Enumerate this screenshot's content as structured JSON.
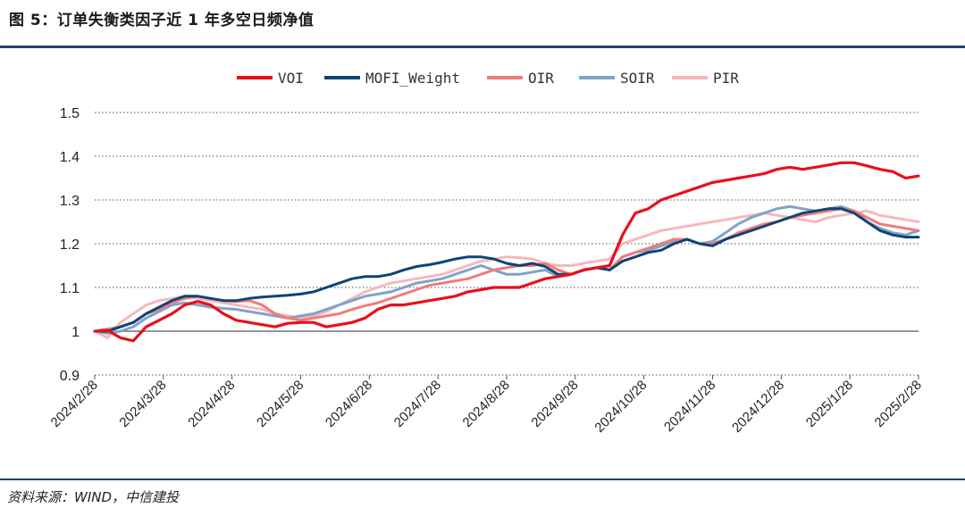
{
  "figure": {
    "title": "图 5：订单失衡类因子近 1 年多空日频净值",
    "source": "资料来源：WIND，中信建投"
  },
  "chart_data": {
    "type": "line",
    "title": "订单失衡类因子近 1 年多空日频净值",
    "xlabel": "",
    "ylabel": "",
    "ylim": [
      0.9,
      1.5
    ],
    "yticks": [
      "1.5",
      "1.4",
      "1.3",
      "1.2",
      "1.1",
      "1",
      "0.9"
    ],
    "x_tick_labels": [
      "2024/2/28",
      "2024/3/28",
      "2024/4/28",
      "2024/5/28",
      "2024/6/28",
      "2024/7/28",
      "2024/8/28",
      "2024/9/28",
      "2024/10/28",
      "2024/11/28",
      "2024/12/28",
      "2025/1/28",
      "2025/2/28"
    ],
    "legend_position": "top",
    "grid": "horizontal dotted",
    "series": [
      {
        "name": "VOI",
        "color": "#e8101a",
        "values": [
          1.0,
          1.002,
          0.985,
          0.978,
          1.01,
          1.025,
          1.04,
          1.06,
          1.068,
          1.06,
          1.04,
          1.025,
          1.02,
          1.015,
          1.01,
          1.018,
          1.02,
          1.02,
          1.01,
          1.015,
          1.02,
          1.03,
          1.05,
          1.06,
          1.06,
          1.065,
          1.07,
          1.075,
          1.08,
          1.09,
          1.095,
          1.1,
          1.1,
          1.1,
          1.11,
          1.12,
          1.125,
          1.13,
          1.14,
          1.145,
          1.15,
          1.22,
          1.27,
          1.28,
          1.3,
          1.31,
          1.32,
          1.33,
          1.34,
          1.345,
          1.35,
          1.355,
          1.36,
          1.37,
          1.375,
          1.37,
          1.375,
          1.38,
          1.385,
          1.385,
          1.378,
          1.37,
          1.365,
          1.35,
          1.355
        ]
      },
      {
        "name": "MOFI_Weight",
        "color": "#0f4475",
        "values": [
          1.0,
          1.0,
          1.01,
          1.02,
          1.04,
          1.055,
          1.07,
          1.08,
          1.08,
          1.075,
          1.07,
          1.07,
          1.075,
          1.078,
          1.08,
          1.082,
          1.085,
          1.09,
          1.1,
          1.11,
          1.12,
          1.125,
          1.125,
          1.13,
          1.14,
          1.148,
          1.152,
          1.158,
          1.165,
          1.17,
          1.17,
          1.165,
          1.155,
          1.15,
          1.155,
          1.148,
          1.13,
          1.13,
          1.14,
          1.145,
          1.14,
          1.16,
          1.17,
          1.18,
          1.185,
          1.2,
          1.21,
          1.2,
          1.195,
          1.21,
          1.22,
          1.23,
          1.24,
          1.25,
          1.26,
          1.27,
          1.275,
          1.28,
          1.28,
          1.27,
          1.25,
          1.23,
          1.22,
          1.215,
          1.215
        ]
      },
      {
        "name": "OIR",
        "color": "#f27b7b",
        "values": [
          1.0,
          1.005,
          1.01,
          1.02,
          1.04,
          1.05,
          1.065,
          1.075,
          1.08,
          1.075,
          1.07,
          1.068,
          1.07,
          1.06,
          1.04,
          1.03,
          1.025,
          1.03,
          1.035,
          1.04,
          1.05,
          1.058,
          1.065,
          1.075,
          1.085,
          1.095,
          1.105,
          1.11,
          1.115,
          1.12,
          1.13,
          1.14,
          1.145,
          1.15,
          1.15,
          1.155,
          1.14,
          1.13,
          1.14,
          1.145,
          1.14,
          1.17,
          1.18,
          1.19,
          1.2,
          1.21,
          1.21,
          1.2,
          1.2,
          1.21,
          1.225,
          1.235,
          1.245,
          1.25,
          1.26,
          1.265,
          1.27,
          1.275,
          1.28,
          1.275,
          1.26,
          1.245,
          1.24,
          1.235,
          1.23
        ]
      },
      {
        "name": "SOIR",
        "color": "#7ea4c8",
        "values": [
          1.0,
          0.995,
          1.0,
          1.01,
          1.03,
          1.045,
          1.06,
          1.065,
          1.06,
          1.055,
          1.052,
          1.05,
          1.045,
          1.04,
          1.035,
          1.03,
          1.035,
          1.04,
          1.05,
          1.06,
          1.07,
          1.08,
          1.085,
          1.09,
          1.1,
          1.11,
          1.115,
          1.12,
          1.13,
          1.14,
          1.15,
          1.14,
          1.13,
          1.13,
          1.135,
          1.14,
          1.125,
          1.13,
          1.14,
          1.145,
          1.14,
          1.17,
          1.18,
          1.185,
          1.195,
          1.205,
          1.21,
          1.2,
          1.205,
          1.225,
          1.245,
          1.26,
          1.27,
          1.28,
          1.285,
          1.28,
          1.275,
          1.28,
          1.285,
          1.275,
          1.25,
          1.235,
          1.225,
          1.22,
          1.23
        ]
      },
      {
        "name": "PIR",
        "color": "#f5b8bc",
        "values": [
          1.0,
          0.985,
          1.02,
          1.04,
          1.06,
          1.07,
          1.075,
          1.08,
          1.075,
          1.07,
          1.065,
          1.06,
          1.055,
          1.05,
          1.04,
          1.035,
          1.03,
          1.035,
          1.045,
          1.06,
          1.075,
          1.09,
          1.1,
          1.11,
          1.115,
          1.12,
          1.125,
          1.13,
          1.14,
          1.15,
          1.16,
          1.165,
          1.17,
          1.168,
          1.165,
          1.155,
          1.15,
          1.15,
          1.155,
          1.16,
          1.165,
          1.2,
          1.21,
          1.22,
          1.23,
          1.235,
          1.24,
          1.245,
          1.25,
          1.255,
          1.26,
          1.265,
          1.27,
          1.265,
          1.26,
          1.255,
          1.25,
          1.26,
          1.265,
          1.27,
          1.275,
          1.265,
          1.26,
          1.255,
          1.25
        ]
      }
    ]
  }
}
